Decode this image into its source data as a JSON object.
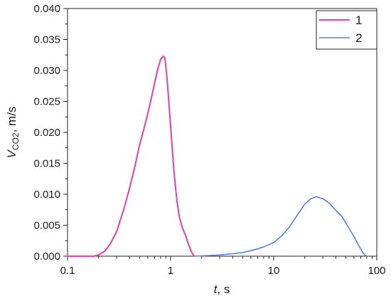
{
  "chart_data": {
    "type": "line",
    "xscale": "log",
    "xlim": [
      0.1,
      100
    ],
    "ylim": [
      0,
      0.04
    ],
    "x_ticks": [
      "0.1",
      "1",
      "10",
      "100"
    ],
    "x_tick_values": [
      0.1,
      1,
      10,
      100
    ],
    "y_ticks": [
      "0.000",
      "0.005",
      "0.010",
      "0.015",
      "0.020",
      "0.025",
      "0.030",
      "0.035",
      "0.040"
    ],
    "y_tick_values": [
      0,
      0.005,
      0.01,
      0.015,
      0.02,
      0.025,
      0.03,
      0.035,
      0.04
    ],
    "xlabel": {
      "var": "t",
      "rest": ", s"
    },
    "ylabel": {
      "var": "V",
      "sub": "CO2",
      "rest": ", m/s"
    },
    "grid": false,
    "legend_position": "top-right",
    "series": [
      {
        "name": "1",
        "color": "#e8409a",
        "points": [
          [
            0.1,
            0
          ],
          [
            0.18,
            0
          ],
          [
            0.2,
            0.0002
          ],
          [
            0.23,
            0.0008
          ],
          [
            0.26,
            0.002
          ],
          [
            0.3,
            0.004
          ],
          [
            0.35,
            0.0075
          ],
          [
            0.4,
            0.011
          ],
          [
            0.45,
            0.0145
          ],
          [
            0.5,
            0.018
          ],
          [
            0.55,
            0.0205
          ],
          [
            0.6,
            0.023
          ],
          [
            0.65,
            0.0255
          ],
          [
            0.7,
            0.028
          ],
          [
            0.75,
            0.0302
          ],
          [
            0.8,
            0.0318
          ],
          [
            0.85,
            0.0323
          ],
          [
            0.88,
            0.032
          ],
          [
            0.92,
            0.029
          ],
          [
            0.97,
            0.024
          ],
          [
            1.02,
            0.019
          ],
          [
            1.08,
            0.0135
          ],
          [
            1.15,
            0.009
          ],
          [
            1.22,
            0.0062
          ],
          [
            1.3,
            0.0046
          ],
          [
            1.4,
            0.0033
          ],
          [
            1.5,
            0.0018
          ],
          [
            1.6,
            0.0006
          ],
          [
            1.7,
            0
          ]
        ]
      },
      {
        "name": "2",
        "color": "#5b7fdc",
        "points": [
          [
            1.7,
            0
          ],
          [
            2,
            5e-05
          ],
          [
            3,
            0.0002
          ],
          [
            4,
            0.0004
          ],
          [
            5,
            0.0006
          ],
          [
            6,
            0.0009
          ],
          [
            7,
            0.0012
          ],
          [
            8,
            0.0015
          ],
          [
            10,
            0.0022
          ],
          [
            12,
            0.0033
          ],
          [
            14,
            0.0046
          ],
          [
            16,
            0.006
          ],
          [
            18,
            0.0073
          ],
          [
            20,
            0.0084
          ],
          [
            23,
            0.0093
          ],
          [
            26,
            0.0096
          ],
          [
            30,
            0.0093
          ],
          [
            35,
            0.0085
          ],
          [
            40,
            0.0074
          ],
          [
            46,
            0.0064
          ],
          [
            52,
            0.0049
          ],
          [
            60,
            0.0032
          ],
          [
            68,
            0.0015
          ],
          [
            75,
            0.0003
          ],
          [
            80,
            0
          ]
        ]
      }
    ]
  }
}
